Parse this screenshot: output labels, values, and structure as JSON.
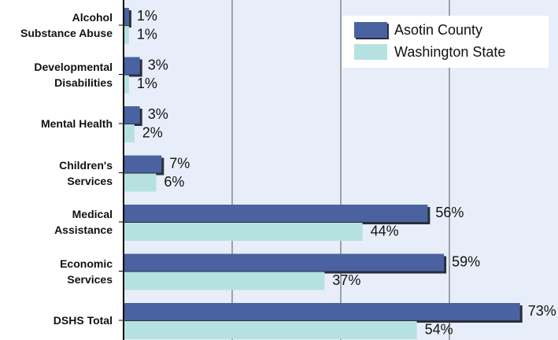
{
  "chart_data": {
    "type": "hbar",
    "categories": [
      "Alcohol\nSubstance Abuse",
      "Developmental\nDisabilities",
      "Mental Health",
      "Children's\nServices",
      "Medical\nAssistance",
      "Economic\nServices",
      "DSHS Total"
    ],
    "series": [
      {
        "name": "Asotin County",
        "color": "#4a62a0",
        "values": [
          1,
          3,
          3,
          7,
          56,
          59,
          73
        ],
        "value_labels": [
          "1%",
          "3%",
          "3%",
          "7%",
          "56%",
          "59%",
          "73%"
        ]
      },
      {
        "name": "Washington State",
        "color": "#b5e2e0",
        "values": [
          1,
          1,
          2,
          6,
          44,
          37,
          54
        ],
        "value_labels": [
          "1%",
          "1%",
          "2%",
          "6%",
          "44%",
          "37%",
          "54%"
        ]
      }
    ],
    "xlim": [
      0,
      80
    ],
    "xticks": [
      20,
      40,
      60
    ],
    "grid": true,
    "legend": "top-right"
  }
}
